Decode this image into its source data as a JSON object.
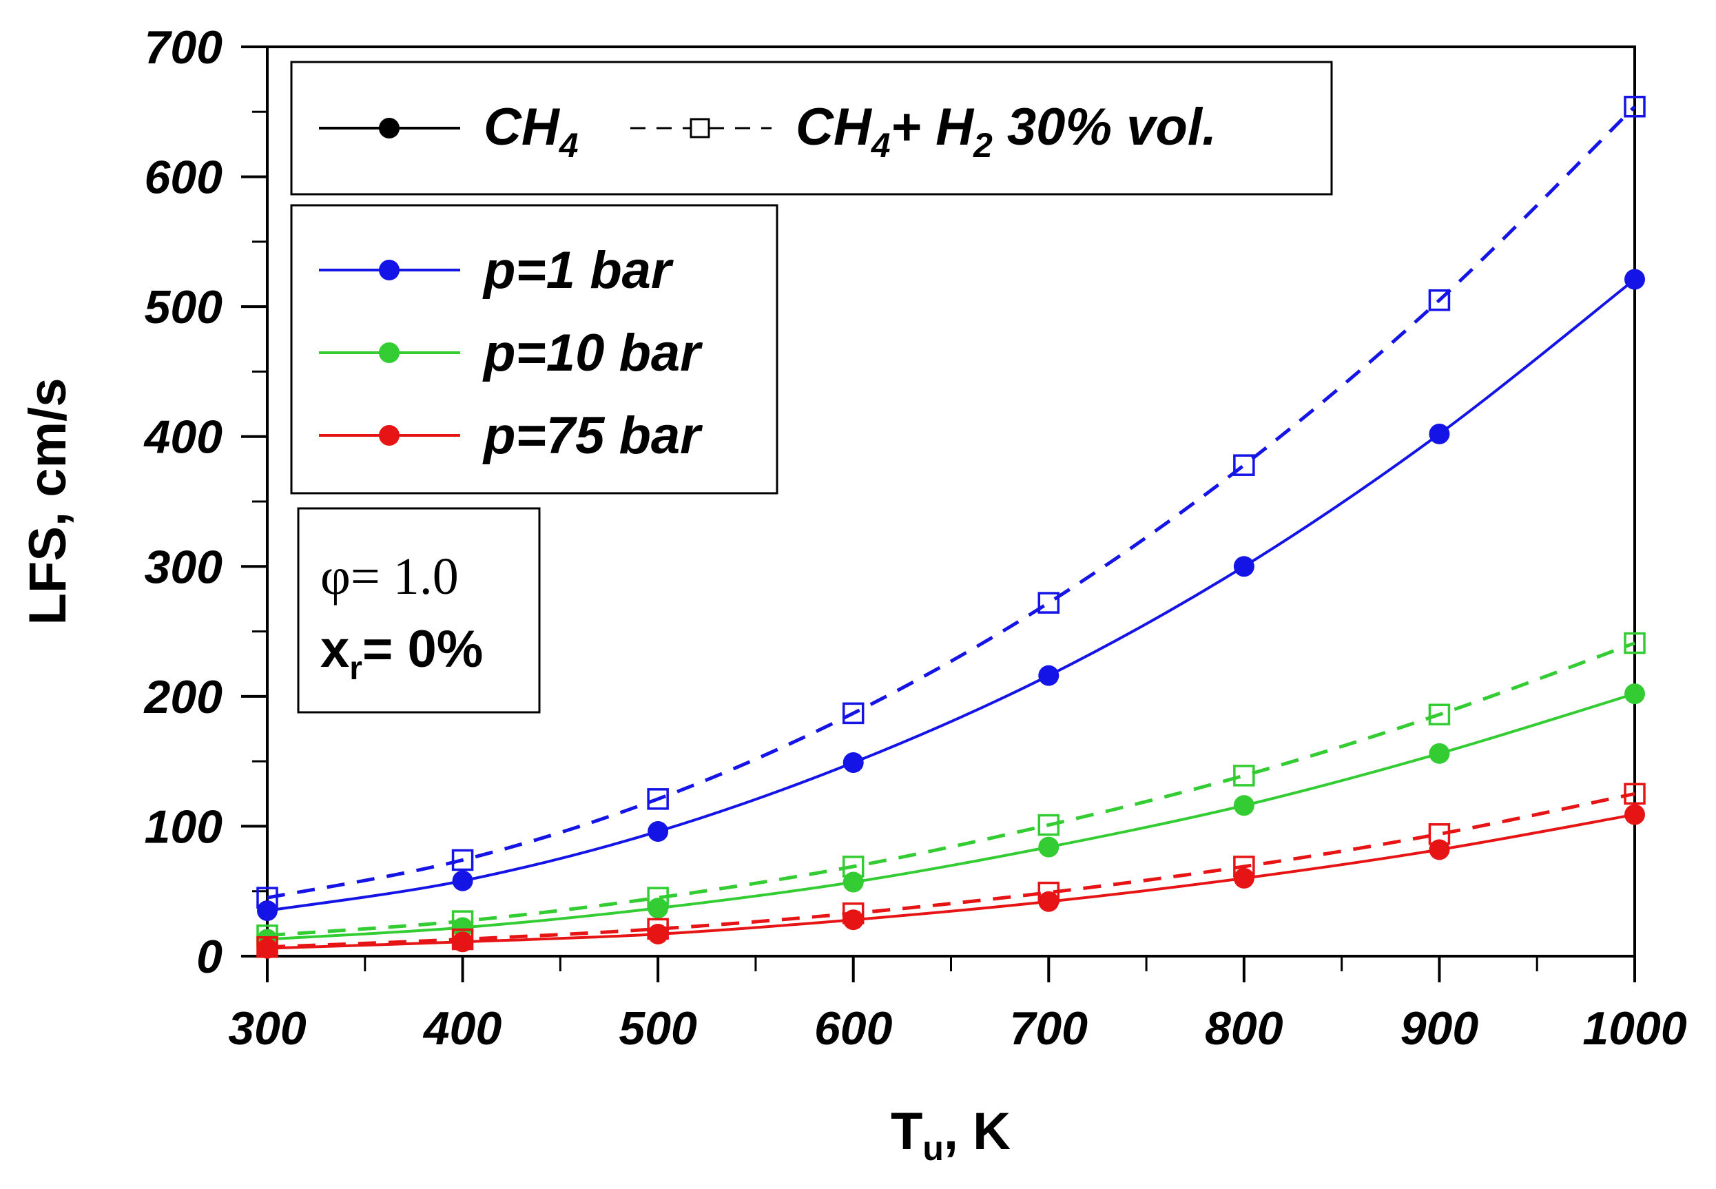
{
  "chart_data": {
    "type": "line",
    "title": "",
    "xlabel": {
      "main": "T",
      "sub": "u",
      "rest": ", K"
    },
    "ylabel": "LFS, cm/s",
    "xlim": [
      300,
      1000
    ],
    "ylim": [
      0,
      700
    ],
    "xticks": [
      300,
      400,
      500,
      600,
      700,
      800,
      900,
      1000
    ],
    "yticks": [
      0,
      100,
      200,
      300,
      400,
      500,
      600,
      700
    ],
    "x": [
      300,
      400,
      500,
      600,
      700,
      800,
      900,
      1000
    ],
    "series": [
      {
        "name": "p=1 bar CH4",
        "fuel": "CH4",
        "pressure": "p=1 bar",
        "color": "#1414e6",
        "dashed": false,
        "marker": "circle",
        "values": [
          35,
          58,
          96,
          149,
          216,
          300,
          402,
          521
        ]
      },
      {
        "name": "p=1 bar CH4+H2 30% vol.",
        "fuel": "CH4+H2",
        "pressure": "p=1 bar",
        "color": "#1414e6",
        "dashed": true,
        "marker": "square",
        "values": [
          45,
          74,
          121,
          187,
          272,
          378,
          505,
          654
        ]
      },
      {
        "name": "p=10 bar CH4",
        "fuel": "CH4",
        "pressure": "p=10 bar",
        "color": "#33cc33",
        "dashed": false,
        "marker": "circle",
        "values": [
          13,
          22,
          37,
          57,
          84,
          116,
          156,
          202
        ]
      },
      {
        "name": "p=10 bar CH4+H2 30% vol.",
        "fuel": "CH4+H2",
        "pressure": "p=10 bar",
        "color": "#33cc33",
        "dashed": true,
        "marker": "square",
        "values": [
          16,
          27,
          45,
          69,
          101,
          139,
          186,
          241
        ]
      },
      {
        "name": "p=75 bar CH4",
        "fuel": "CH4",
        "pressure": "p=75 bar",
        "color": "#e61414",
        "dashed": false,
        "marker": "circle",
        "values": [
          6,
          11,
          17,
          28,
          42,
          60,
          82,
          109
        ]
      },
      {
        "name": "p=75 bar CH4+H2 30% vol.",
        "fuel": "CH4+H2",
        "pressure": "p=75 bar",
        "color": "#e61414",
        "dashed": true,
        "marker": "square",
        "values": [
          7,
          13,
          21,
          33,
          49,
          69,
          94,
          125
        ]
      }
    ],
    "legend_fuel": {
      "solid": {
        "main": "CH",
        "sub": "4"
      },
      "dashed": {
        "main": "CH",
        "sub": "4",
        "mid": "+ H",
        "sub2": "2",
        "rest": " 30% vol."
      }
    },
    "legend_pressure": [
      {
        "label": "p=1 bar",
        "color": "#1414e6"
      },
      {
        "label": "p=10 bar",
        "color": "#33cc33"
      },
      {
        "label": "p=75 bar",
        "color": "#e61414"
      }
    ],
    "annotation": {
      "phi": "φ= 1.0",
      "xr_main": "x",
      "xr_sub": "r",
      "xr_rest": "= 0%"
    }
  }
}
